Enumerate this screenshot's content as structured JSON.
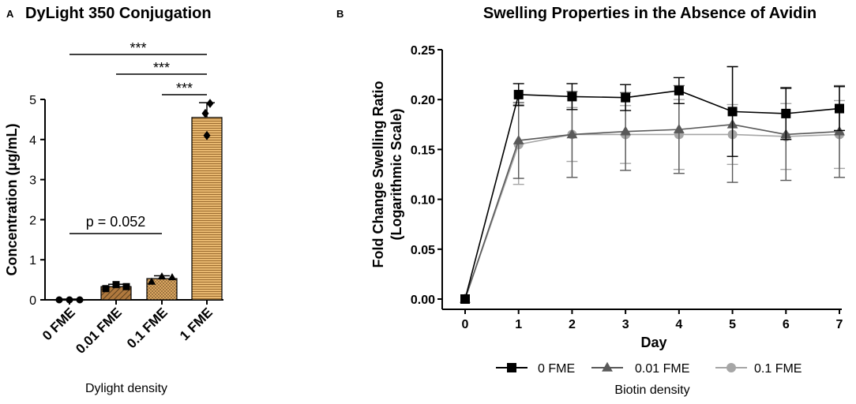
{
  "chart_data": [
    {
      "panel": "A",
      "type": "bar",
      "title": "DyLight 350 Conjugation",
      "ylabel": "Concentration (μg/mL)",
      "xlabel": "Dylight density",
      "categories": [
        "0 FME",
        "0.01 FME",
        "0.1 FME",
        "1 FME"
      ],
      "values": [
        0.0,
        0.33,
        0.53,
        4.55
      ],
      "errors": [
        0.02,
        0.06,
        0.07,
        0.37
      ],
      "points": [
        [
          0.0,
          0.0,
          0.0
        ],
        [
          0.28,
          0.38,
          0.33
        ],
        [
          0.45,
          0.58,
          0.56
        ],
        [
          4.1,
          4.9,
          4.65
        ]
      ],
      "point_markers": [
        "circle",
        "square",
        "triangle",
        "diamond"
      ],
      "ylim": [
        0,
        5
      ],
      "yticks": [
        0,
        1,
        2,
        3,
        4,
        5
      ],
      "bar_color": "#d9a560",
      "significance": [
        {
          "from": 0,
          "to": 3,
          "label": "***",
          "level": 5.6
        },
        {
          "from": 1,
          "to": 3,
          "label": "***",
          "level": 5.2
        },
        {
          "from": 2,
          "to": 3,
          "label": "***",
          "level": 5.15
        }
      ],
      "pvalue": {
        "from": 0,
        "to": 2,
        "label": "p = 0.052",
        "level": 1.65
      }
    },
    {
      "panel": "B",
      "type": "line",
      "title": "Swelling Properties in the Absence of Avidin",
      "ylabel": "Fold Change Swelling Ratio",
      "ylabel2": "(Logarithmic Scale)",
      "xlabel": "Day",
      "x": [
        0,
        1,
        2,
        3,
        4,
        5,
        6,
        7
      ],
      "xlim": [
        0,
        7
      ],
      "ylim": [
        0,
        0.25
      ],
      "yticks": [
        "0.00",
        "0.05",
        "0.10",
        "0.15",
        "0.20",
        "0.25"
      ],
      "legend_title": "Biotin density",
      "series": [
        {
          "name": "0 FME",
          "marker": "square",
          "color": "#000000",
          "values": [
            0.0,
            0.205,
            0.203,
            0.202,
            0.209,
            0.188,
            0.186,
            0.191
          ],
          "errors": [
            0,
            0.011,
            0.013,
            0.013,
            0.013,
            0.045,
            0.026,
            0.022
          ]
        },
        {
          "name": "0.01 FME",
          "marker": "triangle",
          "color": "#595959",
          "values": [
            0.0,
            0.159,
            0.165,
            0.168,
            0.17,
            0.175,
            0.165,
            0.168
          ],
          "errors": [
            0,
            0.038,
            0.043,
            0.039,
            0.044,
            0.058,
            0.046,
            0.046
          ]
        },
        {
          "name": "0.1 FME",
          "marker": "circle",
          "color": "#a6a6a6",
          "values": [
            0.0,
            0.155,
            0.165,
            0.165,
            0.165,
            0.165,
            0.163,
            0.165
          ],
          "errors": [
            0,
            0.04,
            0.027,
            0.029,
            0.035,
            0.03,
            0.033,
            0.034
          ]
        }
      ]
    }
  ],
  "labels": {
    "panel_a": "A",
    "panel_b": "B"
  }
}
